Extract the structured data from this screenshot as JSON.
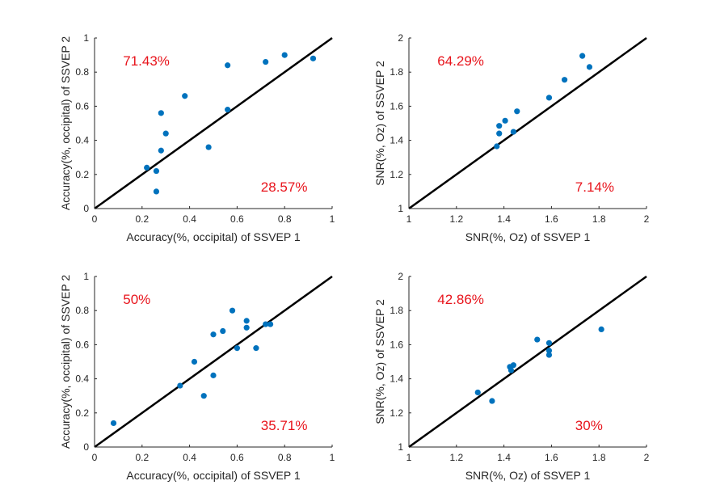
{
  "colors": {
    "points": "#0072bd",
    "annotation": "#e8141c",
    "diagonal": "#000000",
    "axes": "#262626"
  },
  "chart_data": [
    {
      "type": "scatter",
      "xlabel": "Accuracy(%, occipital) of SSVEP 1",
      "ylabel": "Accuracy(%, occipital) of SSVEP 2",
      "xlim": [
        0,
        1
      ],
      "ylim": [
        0,
        1
      ],
      "xticks": [
        "0",
        "0.2",
        "0.4",
        "0.6",
        "0.8",
        "1"
      ],
      "yticks": [
        "0",
        "0.2",
        "0.4",
        "0.6",
        "0.8",
        "1"
      ],
      "annotation_upper": "71.43%",
      "annotation_lower": "28.57%",
      "reference_line": "y = x",
      "points": [
        {
          "x": 0.22,
          "y": 0.24
        },
        {
          "x": 0.26,
          "y": 0.22
        },
        {
          "x": 0.26,
          "y": 0.1
        },
        {
          "x": 0.28,
          "y": 0.34
        },
        {
          "x": 0.28,
          "y": 0.56
        },
        {
          "x": 0.3,
          "y": 0.44
        },
        {
          "x": 0.38,
          "y": 0.66
        },
        {
          "x": 0.48,
          "y": 0.36
        },
        {
          "x": 0.56,
          "y": 0.84
        },
        {
          "x": 0.56,
          "y": 0.58
        },
        {
          "x": 0.72,
          "y": 0.86
        },
        {
          "x": 0.8,
          "y": 0.9
        },
        {
          "x": 0.92,
          "y": 0.88
        }
      ]
    },
    {
      "type": "scatter",
      "xlabel": "SNR(%, Oz) of SSVEP 1",
      "ylabel": "SNR(%, Oz) of SSVEP 2",
      "xlim": [
        1,
        2
      ],
      "ylim": [
        1,
        2
      ],
      "xticks": [
        "1",
        "1.2",
        "1.4",
        "1.6",
        "1.8",
        "2"
      ],
      "yticks": [
        "1",
        "1.2",
        "1.4",
        "1.6",
        "1.8",
        "2"
      ],
      "annotation_upper": "64.29%",
      "annotation_lower": "7.14%",
      "reference_line": "y = x",
      "points": [
        {
          "x": 1.37,
          "y": 1.365
        },
        {
          "x": 1.38,
          "y": 1.44
        },
        {
          "x": 1.38,
          "y": 1.485
        },
        {
          "x": 1.405,
          "y": 1.515
        },
        {
          "x": 1.44,
          "y": 1.45
        },
        {
          "x": 1.455,
          "y": 1.57
        },
        {
          "x": 1.59,
          "y": 1.65
        },
        {
          "x": 1.655,
          "y": 1.755
        },
        {
          "x": 1.73,
          "y": 1.895
        },
        {
          "x": 1.76,
          "y": 1.83
        }
      ]
    },
    {
      "type": "scatter",
      "xlabel": "Accuracy(%, occipital) of SSVEP 1",
      "ylabel": "Accuracy(%, occipital) of SSVEP 2",
      "xlim": [
        0,
        1
      ],
      "ylim": [
        0,
        1
      ],
      "xticks": [
        "0",
        "0.2",
        "0.4",
        "0.6",
        "0.8",
        "1"
      ],
      "yticks": [
        "0",
        "0.2",
        "0.4",
        "0.6",
        "0.8",
        "1"
      ],
      "annotation_upper": "50%",
      "annotation_lower": "35.71%",
      "reference_line": "y = x",
      "points": [
        {
          "x": 0.08,
          "y": 0.14
        },
        {
          "x": 0.36,
          "y": 0.36
        },
        {
          "x": 0.42,
          "y": 0.5
        },
        {
          "x": 0.46,
          "y": 0.3
        },
        {
          "x": 0.5,
          "y": 0.66
        },
        {
          "x": 0.5,
          "y": 0.42
        },
        {
          "x": 0.54,
          "y": 0.68
        },
        {
          "x": 0.58,
          "y": 0.8
        },
        {
          "x": 0.6,
          "y": 0.58
        },
        {
          "x": 0.64,
          "y": 0.74
        },
        {
          "x": 0.64,
          "y": 0.7
        },
        {
          "x": 0.68,
          "y": 0.58
        },
        {
          "x": 0.72,
          "y": 0.72
        },
        {
          "x": 0.74,
          "y": 0.72
        }
      ]
    },
    {
      "type": "scatter",
      "xlabel": "SNR(%, Oz) of SSVEP 1",
      "ylabel": "SNR(%, Oz) of SSVEP 2",
      "xlim": [
        1,
        2
      ],
      "ylim": [
        1,
        2
      ],
      "xticks": [
        "1",
        "1.2",
        "1.4",
        "1.6",
        "1.8",
        "2"
      ],
      "yticks": [
        "1",
        "1.2",
        "1.4",
        "1.6",
        "1.8",
        "2"
      ],
      "annotation_upper": "42.86%",
      "annotation_lower": "30%",
      "reference_line": "y = x",
      "points": [
        {
          "x": 1.29,
          "y": 1.32
        },
        {
          "x": 1.35,
          "y": 1.27
        },
        {
          "x": 1.425,
          "y": 1.47
        },
        {
          "x": 1.43,
          "y": 1.45
        },
        {
          "x": 1.44,
          "y": 1.48
        },
        {
          "x": 1.54,
          "y": 1.63
        },
        {
          "x": 1.59,
          "y": 1.61
        },
        {
          "x": 1.59,
          "y": 1.565
        },
        {
          "x": 1.59,
          "y": 1.54
        },
        {
          "x": 1.81,
          "y": 1.69
        }
      ]
    }
  ]
}
